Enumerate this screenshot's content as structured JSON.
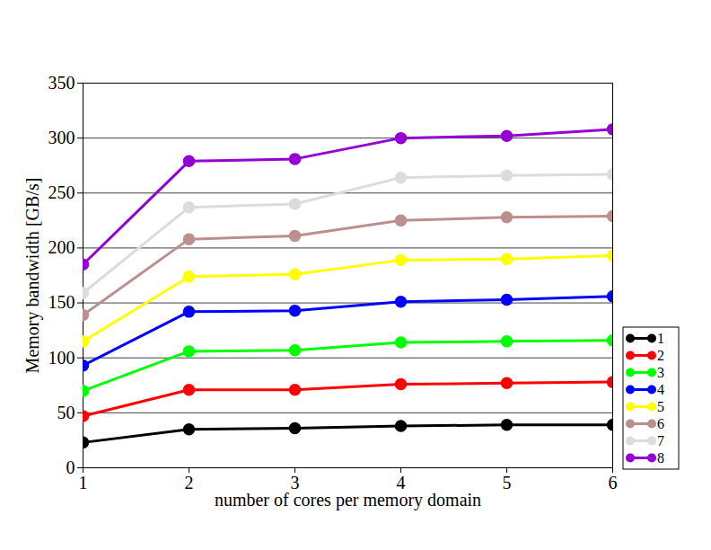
{
  "chart_data": {
    "type": "line",
    "x_label": "number of cores per memory domain",
    "y_label": "Memory bandwidth [GB/s]",
    "x": [
      1,
      2,
      3,
      4,
      5,
      6
    ],
    "xlim": [
      1,
      6
    ],
    "xticks": [
      1,
      2,
      3,
      4,
      5,
      6
    ],
    "ylim": [
      0,
      350
    ],
    "yticks": [
      0,
      50,
      100,
      150,
      200,
      250,
      300,
      350
    ],
    "grid": true,
    "legend": "right",
    "marker": "circle",
    "series": [
      {
        "name": "1",
        "color": "#000000",
        "values": [
          23,
          35,
          36,
          38,
          39,
          39
        ]
      },
      {
        "name": "2",
        "color": "#ff0000",
        "values": [
          47,
          71,
          71,
          76,
          77,
          78
        ]
      },
      {
        "name": "3",
        "color": "#00ff00",
        "values": [
          70,
          106,
          107,
          114,
          115,
          116
        ]
      },
      {
        "name": "4",
        "color": "#0000ff",
        "values": [
          93,
          142,
          143,
          151,
          153,
          156
        ]
      },
      {
        "name": "5",
        "color": "#ffff00",
        "values": [
          115,
          174,
          176,
          189,
          190,
          193
        ]
      },
      {
        "name": "6",
        "color": "#bc8f8f",
        "values": [
          139,
          208,
          211,
          225,
          228,
          229
        ]
      },
      {
        "name": "7",
        "color": "#dcdcdc",
        "values": [
          159,
          237,
          240,
          264,
          266,
          267
        ]
      },
      {
        "name": "8",
        "color": "#9400d3",
        "values": [
          185,
          279,
          281,
          300,
          302,
          308
        ]
      }
    ]
  }
}
